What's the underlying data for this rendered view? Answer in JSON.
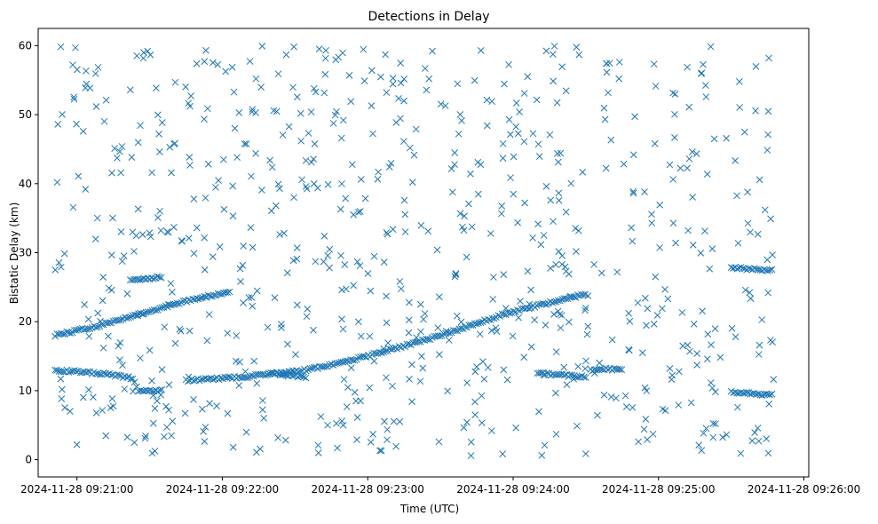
{
  "chart_data": {
    "type": "scatter",
    "title": "Detections in Delay",
    "xlabel": "Time (UTC)",
    "ylabel": "Bistatic Delay (km)",
    "marker": "x",
    "color": "#1f77b4",
    "grid": false,
    "xlim": [
      "2024-11-28 09:20:44",
      "2024-11-28 09:26:02"
    ],
    "ylim": [
      -2.5,
      62.5
    ],
    "x_ticks": [
      "2024-11-28 09:21:00",
      "2024-11-28 09:22:00",
      "2024-11-28 09:23:00",
      "2024-11-28 09:24:00",
      "2024-11-28 09:25:00",
      "2024-11-28 09:26:00"
    ],
    "y_ticks": [
      0,
      10,
      20,
      30,
      40,
      50,
      60
    ],
    "x_range": [
      "2024-11-28 09:20:51",
      "2024-11-28 09:25:48"
    ],
    "tracks": [
      {
        "points": [
          [
            "2024-11-28 09:20:51",
            18.0
          ],
          [
            "2024-11-28 09:21:10",
            19.5
          ],
          [
            "2024-11-28 09:21:30",
            21.5
          ],
          [
            "2024-11-28 09:21:45",
            23.0
          ],
          [
            "2024-11-28 09:22:03",
            24.3
          ]
        ]
      },
      {
        "points": [
          [
            "2024-11-28 09:20:51",
            13.0
          ],
          [
            "2024-11-28 09:21:10",
            12.5
          ],
          [
            "2024-11-28 09:21:23",
            11.8
          ],
          [
            "2024-11-28 09:21:25",
            10.1
          ],
          [
            "2024-11-28 09:21:35",
            10.0
          ]
        ]
      },
      {
        "points": [
          [
            "2024-11-28 09:21:22",
            26.0
          ],
          [
            "2024-11-28 09:21:35",
            26.5
          ]
        ]
      },
      {
        "points": [
          [
            "2024-11-28 09:21:45",
            11.5
          ],
          [
            "2024-11-28 09:22:10",
            12.0
          ],
          [
            "2024-11-28 09:22:35",
            13.0
          ],
          [
            "2024-11-28 09:23:00",
            15.0
          ],
          [
            "2024-11-28 09:23:30",
            18.0
          ],
          [
            "2024-11-28 09:24:00",
            21.5
          ],
          [
            "2024-11-28 09:24:30",
            24.0
          ]
        ]
      },
      {
        "points": [
          [
            "2024-11-28 09:22:20",
            12.5
          ],
          [
            "2024-11-28 09:22:35",
            12.0
          ]
        ]
      },
      {
        "points": [
          [
            "2024-11-28 09:24:10",
            12.5
          ],
          [
            "2024-11-28 09:24:30",
            12.0
          ]
        ]
      },
      {
        "points": [
          [
            "2024-11-28 09:24:32",
            13.0
          ],
          [
            "2024-11-28 09:24:45",
            13.2
          ]
        ]
      },
      {
        "points": [
          [
            "2024-11-28 09:25:30",
            27.8
          ],
          [
            "2024-11-28 09:25:47",
            27.5
          ]
        ]
      },
      {
        "points": [
          [
            "2024-11-28 09:25:30",
            9.8
          ],
          [
            "2024-11-28 09:25:47",
            9.4
          ]
        ]
      }
    ],
    "noise_density_per_minute": 150,
    "noise_ylim": [
      0.5,
      60
    ]
  }
}
